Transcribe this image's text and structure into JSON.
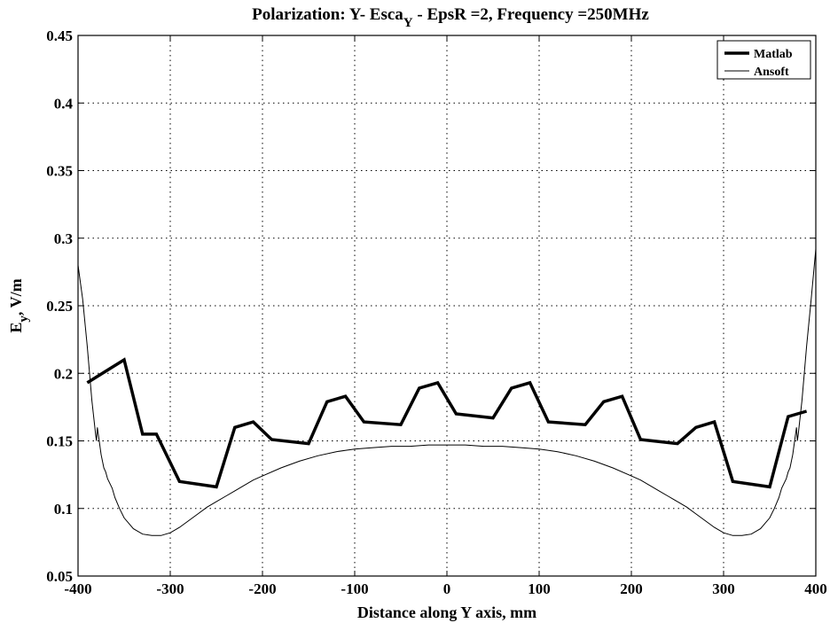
{
  "chart_data": {
    "type": "line",
    "title_main": "Polarization: Y- Esca",
    "title_subscript": "Y",
    "title_rest": " - EpsR =2, Frequency =250MHz",
    "xlabel": "Distance along Y axis, mm",
    "ylabel_main": "E",
    "ylabel_subscript": "y",
    "ylabel_rest": ", V/m",
    "xlim": [
      -400,
      400
    ],
    "ylim": [
      0.05,
      0.45
    ],
    "xticks": [
      -400,
      -300,
      -200,
      -100,
      0,
      100,
      200,
      300,
      400
    ],
    "yticks": [
      0.05,
      0.1,
      0.15,
      0.2,
      0.25,
      0.3,
      0.35,
      0.4,
      0.45
    ],
    "xtick_labels": [
      "-400",
      "-300",
      "-200",
      "-100",
      "0",
      "100",
      "200",
      "300",
      "400"
    ],
    "ytick_labels": [
      "0.05",
      "0.1",
      "0.15",
      "0.2",
      "0.25",
      "0.3",
      "0.35",
      "0.4",
      "0.45"
    ],
    "grid": true,
    "legend_position": "top-right",
    "series": [
      {
        "name": "Matlab",
        "style": "thick",
        "color": "#000000",
        "x": [
          -390,
          -350,
          -330,
          -315,
          -290,
          -250,
          -230,
          -210,
          -190,
          -150,
          -130,
          -110,
          -90,
          -50,
          -30,
          -10,
          10,
          50,
          70,
          90,
          110,
          150,
          170,
          190,
          210,
          250,
          270,
          290,
          310,
          350,
          370,
          390
        ],
        "y": [
          0.193,
          0.21,
          0.155,
          0.155,
          0.12,
          0.116,
          0.16,
          0.164,
          0.151,
          0.148,
          0.179,
          0.183,
          0.164,
          0.162,
          0.189,
          0.193,
          0.17,
          0.167,
          0.189,
          0.193,
          0.164,
          0.162,
          0.179,
          0.183,
          0.151,
          0.148,
          0.16,
          0.164,
          0.12,
          0.116,
          0.168,
          0.172
        ]
      },
      {
        "name": "Ansoft",
        "style": "thin",
        "color": "#000000",
        "x": [
          -400,
          -395,
          -390,
          -385,
          -381,
          -380,
          -379,
          -375,
          -372,
          -370,
          -368,
          -363,
          -360,
          -355,
          -350,
          -340,
          -330,
          -320,
          -310,
          -300,
          -290,
          -280,
          -270,
          -260,
          -250,
          -240,
          -230,
          -220,
          -210,
          -200,
          -180,
          -160,
          -140,
          -120,
          -100,
          -80,
          -60,
          -40,
          -20,
          0,
          20,
          40,
          60,
          80,
          100,
          120,
          140,
          160,
          180,
          200,
          210,
          220,
          230,
          240,
          250,
          260,
          270,
          280,
          290,
          300,
          310,
          320,
          330,
          340,
          350,
          355,
          360,
          363,
          368,
          370,
          372,
          375,
          379,
          380,
          381,
          385,
          390,
          395,
          400
        ],
        "y": [
          0.28,
          0.255,
          0.22,
          0.18,
          0.155,
          0.15,
          0.16,
          0.14,
          0.13,
          0.127,
          0.122,
          0.115,
          0.108,
          0.1,
          0.093,
          0.085,
          0.081,
          0.08,
          0.08,
          0.082,
          0.086,
          0.091,
          0.096,
          0.101,
          0.105,
          0.109,
          0.113,
          0.117,
          0.121,
          0.124,
          0.13,
          0.135,
          0.139,
          0.142,
          0.144,
          0.145,
          0.146,
          0.146,
          0.147,
          0.147,
          0.147,
          0.146,
          0.146,
          0.145,
          0.144,
          0.142,
          0.139,
          0.135,
          0.13,
          0.124,
          0.121,
          0.117,
          0.113,
          0.109,
          0.105,
          0.101,
          0.096,
          0.091,
          0.086,
          0.082,
          0.08,
          0.08,
          0.081,
          0.085,
          0.093,
          0.1,
          0.108,
          0.115,
          0.122,
          0.127,
          0.13,
          0.14,
          0.16,
          0.15,
          0.155,
          0.18,
          0.22,
          0.255,
          0.292
        ]
      }
    ]
  }
}
